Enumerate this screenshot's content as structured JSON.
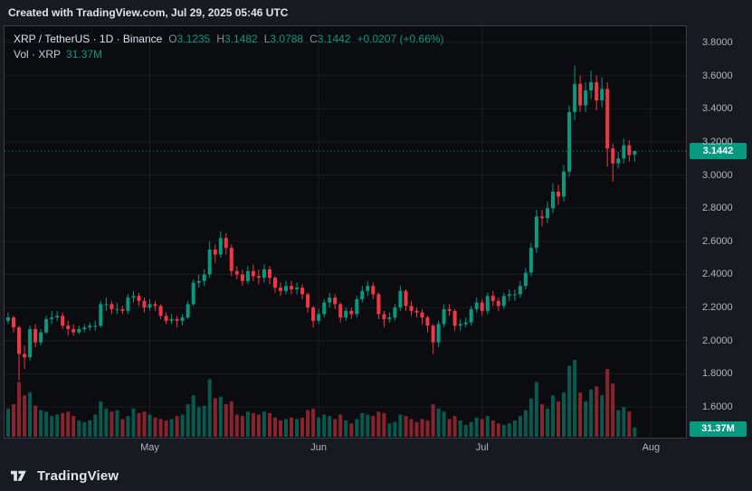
{
  "header": {
    "created_text": "Created with TradingView.com, Jul 29, 2025 05:46 UTC"
  },
  "legend": {
    "title": "XRP / TetherUS · 1D · Binance",
    "o_label": "O",
    "o_value": "3.1235",
    "h_label": "H",
    "h_value": "3.1482",
    "l_label": "L",
    "l_value": "3.0788",
    "c_label": "C",
    "c_value": "3.1442",
    "change": "+0.0207 (+0.66%)",
    "vol_label": "Vol · XRP",
    "vol_value": "31.37M"
  },
  "axes": {
    "price_ticks": [
      {
        "label": "3.8000",
        "value": 3.8
      },
      {
        "label": "3.6000",
        "value": 3.6
      },
      {
        "label": "3.4000",
        "value": 3.4
      },
      {
        "label": "3.2000",
        "value": 3.2
      },
      {
        "label": "3.0000",
        "value": 3.0
      },
      {
        "label": "2.8000",
        "value": 2.8
      },
      {
        "label": "2.6000",
        "value": 2.6
      },
      {
        "label": "2.4000",
        "value": 2.4
      },
      {
        "label": "2.2000",
        "value": 2.2
      },
      {
        "label": "2.0000",
        "value": 2.0
      },
      {
        "label": "1.8000",
        "value": 1.8
      },
      {
        "label": "1.6000",
        "value": 1.6
      }
    ],
    "time_ticks": [
      {
        "label": "May",
        "date": "2025-05-01"
      },
      {
        "label": "Jun",
        "date": "2025-06-01"
      },
      {
        "label": "Jul",
        "date": "2025-07-01"
      },
      {
        "label": "Aug",
        "date": "2025-08-01"
      }
    ],
    "last_price_label": "3.1442",
    "last_volume_label": "31.37M"
  },
  "footer": {
    "brand": "TradingView"
  },
  "colors": {
    "up": "#089981",
    "down": "#f23645",
    "vol_up": "rgba(8,153,129,0.55)",
    "vol_down": "rgba(242,54,69,0.55)",
    "grid": "rgba(240,243,250,0.07)",
    "axis_text": "#b2b5be",
    "pane_bg": "#0b0c10"
  },
  "chart_data": {
    "type": "candlestick",
    "title": "XRP / TetherUS · 1D · Binance",
    "interval": "1D",
    "start_date": "2025-04-05",
    "y_axis": {
      "min": 1.6,
      "max": 3.8
    },
    "last_price": 3.1442,
    "last_volume_m": 31.37,
    "open": [
      2.12,
      2.14,
      2.08,
      1.92,
      1.9,
      2.07,
      1.99,
      2.05,
      2.13,
      2.14,
      2.15,
      2.09,
      2.07,
      2.05,
      2.07,
      2.08,
      2.09,
      2.09,
      2.22,
      2.22,
      2.19,
      2.19,
      2.18,
      2.26,
      2.27,
      2.24,
      2.2,
      2.22,
      2.21,
      2.15,
      2.12,
      2.13,
      2.12,
      2.14,
      2.22,
      2.35,
      2.36,
      2.4,
      2.55,
      2.52,
      2.62,
      2.56,
      2.42,
      2.4,
      2.36,
      2.42,
      2.39,
      2.38,
      2.43,
      2.38,
      2.32,
      2.3,
      2.33,
      2.31,
      2.32,
      2.28,
      2.2,
      2.12,
      2.16,
      2.23,
      2.26,
      2.22,
      2.14,
      2.18,
      2.16,
      2.25,
      2.3,
      2.33,
      2.28,
      2.16,
      2.13,
      2.14,
      2.2,
      2.3,
      2.21,
      2.18,
      2.17,
      2.14,
      2.09,
      1.99,
      2.1,
      2.19,
      2.18,
      2.09,
      2.1,
      2.11,
      2.19,
      2.23,
      2.18,
      2.27,
      2.24,
      2.21,
      2.27,
      2.28,
      2.28,
      2.33,
      2.41,
      2.56,
      2.75,
      2.74,
      2.8,
      2.9,
      2.87,
      3.02,
      3.38,
      3.55,
      3.42,
      3.51,
      3.56,
      3.45,
      3.52,
      3.16,
      3.07,
      3.1,
      3.18,
      3.1235
    ],
    "high": [
      2.17,
      2.15,
      2.09,
      1.97,
      2.09,
      2.1,
      2.07,
      2.15,
      2.18,
      2.18,
      2.17,
      2.12,
      2.1,
      2.09,
      2.1,
      2.11,
      2.12,
      2.24,
      2.26,
      2.24,
      2.23,
      2.21,
      2.28,
      2.3,
      2.29,
      2.26,
      2.25,
      2.24,
      2.22,
      2.17,
      2.16,
      2.15,
      2.16,
      2.24,
      2.37,
      2.4,
      2.43,
      2.6,
      2.58,
      2.66,
      2.65,
      2.58,
      2.45,
      2.43,
      2.45,
      2.46,
      2.43,
      2.46,
      2.45,
      2.39,
      2.35,
      2.36,
      2.36,
      2.35,
      2.34,
      2.29,
      2.21,
      2.19,
      2.25,
      2.29,
      2.28,
      2.23,
      2.2,
      2.2,
      2.27,
      2.33,
      2.36,
      2.35,
      2.29,
      2.18,
      2.17,
      2.22,
      2.33,
      2.31,
      2.24,
      2.2,
      2.19,
      2.15,
      2.1,
      2.12,
      2.22,
      2.22,
      2.19,
      2.13,
      2.14,
      2.21,
      2.26,
      2.25,
      2.29,
      2.3,
      2.26,
      2.29,
      2.31,
      2.31,
      2.36,
      2.44,
      2.59,
      2.79,
      2.79,
      2.84,
      2.95,
      2.94,
      3.06,
      3.42,
      3.66,
      3.6,
      3.56,
      3.63,
      3.6,
      3.59,
      3.56,
      3.19,
      3.14,
      3.22,
      3.21,
      3.1482
    ],
    "low": [
      2.1,
      2.05,
      1.76,
      1.83,
      1.88,
      1.96,
      1.97,
      2.04,
      2.1,
      2.12,
      2.07,
      2.03,
      2.03,
      2.04,
      2.05,
      2.06,
      2.06,
      2.08,
      2.18,
      2.16,
      2.16,
      2.16,
      2.16,
      2.23,
      2.21,
      2.17,
      2.18,
      2.18,
      2.13,
      2.1,
      2.1,
      2.08,
      2.09,
      2.13,
      2.21,
      2.32,
      2.33,
      2.38,
      2.47,
      2.5,
      2.52,
      2.39,
      2.37,
      2.33,
      2.34,
      2.36,
      2.34,
      2.35,
      2.34,
      2.29,
      2.27,
      2.28,
      2.28,
      2.28,
      2.25,
      2.17,
      2.08,
      2.1,
      2.14,
      2.2,
      2.19,
      2.11,
      2.12,
      2.13,
      2.14,
      2.23,
      2.27,
      2.25,
      2.13,
      2.08,
      2.11,
      2.12,
      2.18,
      2.18,
      2.15,
      2.14,
      2.1,
      2.05,
      1.92,
      1.96,
      2.08,
      2.15,
      2.06,
      2.06,
      2.08,
      2.09,
      2.17,
      2.15,
      2.16,
      2.21,
      2.18,
      2.19,
      2.24,
      2.24,
      2.26,
      2.31,
      2.39,
      2.53,
      2.69,
      2.71,
      2.77,
      2.82,
      2.84,
      2.99,
      3.33,
      3.38,
      3.38,
      3.46,
      3.39,
      3.41,
      3.05,
      2.96,
      3.04,
      3.07,
      3.08,
      3.0788
    ],
    "close": [
      2.14,
      2.08,
      1.92,
      1.9,
      2.07,
      1.99,
      2.05,
      2.13,
      2.14,
      2.15,
      2.09,
      2.07,
      2.05,
      2.07,
      2.08,
      2.09,
      2.09,
      2.22,
      2.22,
      2.19,
      2.19,
      2.18,
      2.26,
      2.27,
      2.24,
      2.2,
      2.22,
      2.21,
      2.15,
      2.12,
      2.13,
      2.12,
      2.14,
      2.22,
      2.35,
      2.36,
      2.4,
      2.55,
      2.52,
      2.62,
      2.56,
      2.42,
      2.4,
      2.36,
      2.42,
      2.39,
      2.38,
      2.43,
      2.38,
      2.32,
      2.3,
      2.33,
      2.31,
      2.32,
      2.28,
      2.2,
      2.12,
      2.16,
      2.23,
      2.26,
      2.22,
      2.14,
      2.18,
      2.16,
      2.25,
      2.3,
      2.33,
      2.28,
      2.16,
      2.13,
      2.14,
      2.2,
      2.3,
      2.21,
      2.18,
      2.17,
      2.14,
      2.09,
      1.99,
      2.1,
      2.19,
      2.18,
      2.09,
      2.1,
      2.11,
      2.19,
      2.23,
      2.18,
      2.27,
      2.24,
      2.21,
      2.27,
      2.28,
      2.28,
      2.33,
      2.41,
      2.56,
      2.75,
      2.74,
      2.8,
      2.9,
      2.87,
      3.02,
      3.38,
      3.55,
      3.42,
      3.51,
      3.56,
      3.45,
      3.52,
      3.16,
      3.07,
      3.1,
      3.18,
      3.12,
      3.1442
    ],
    "volume_m": [
      95,
      110,
      185,
      140,
      150,
      105,
      90,
      85,
      70,
      75,
      80,
      85,
      70,
      55,
      50,
      55,
      75,
      120,
      95,
      85,
      90,
      60,
      70,
      95,
      80,
      85,
      75,
      65,
      60,
      55,
      60,
      70,
      75,
      110,
      140,
      100,
      105,
      195,
      130,
      135,
      110,
      120,
      75,
      70,
      85,
      80,
      75,
      85,
      80,
      65,
      55,
      60,
      65,
      60,
      65,
      90,
      95,
      65,
      75,
      70,
      60,
      75,
      55,
      45,
      60,
      80,
      75,
      70,
      85,
      80,
      45,
      50,
      75,
      70,
      60,
      50,
      60,
      55,
      110,
      95,
      85,
      60,
      70,
      55,
      40,
      50,
      65,
      60,
      70,
      55,
      45,
      40,
      45,
      55,
      70,
      90,
      130,
      185,
      110,
      95,
      140,
      120,
      150,
      240,
      260,
      150,
      120,
      160,
      170,
      140,
      230,
      180,
      90,
      100,
      85,
      31.37
    ]
  }
}
